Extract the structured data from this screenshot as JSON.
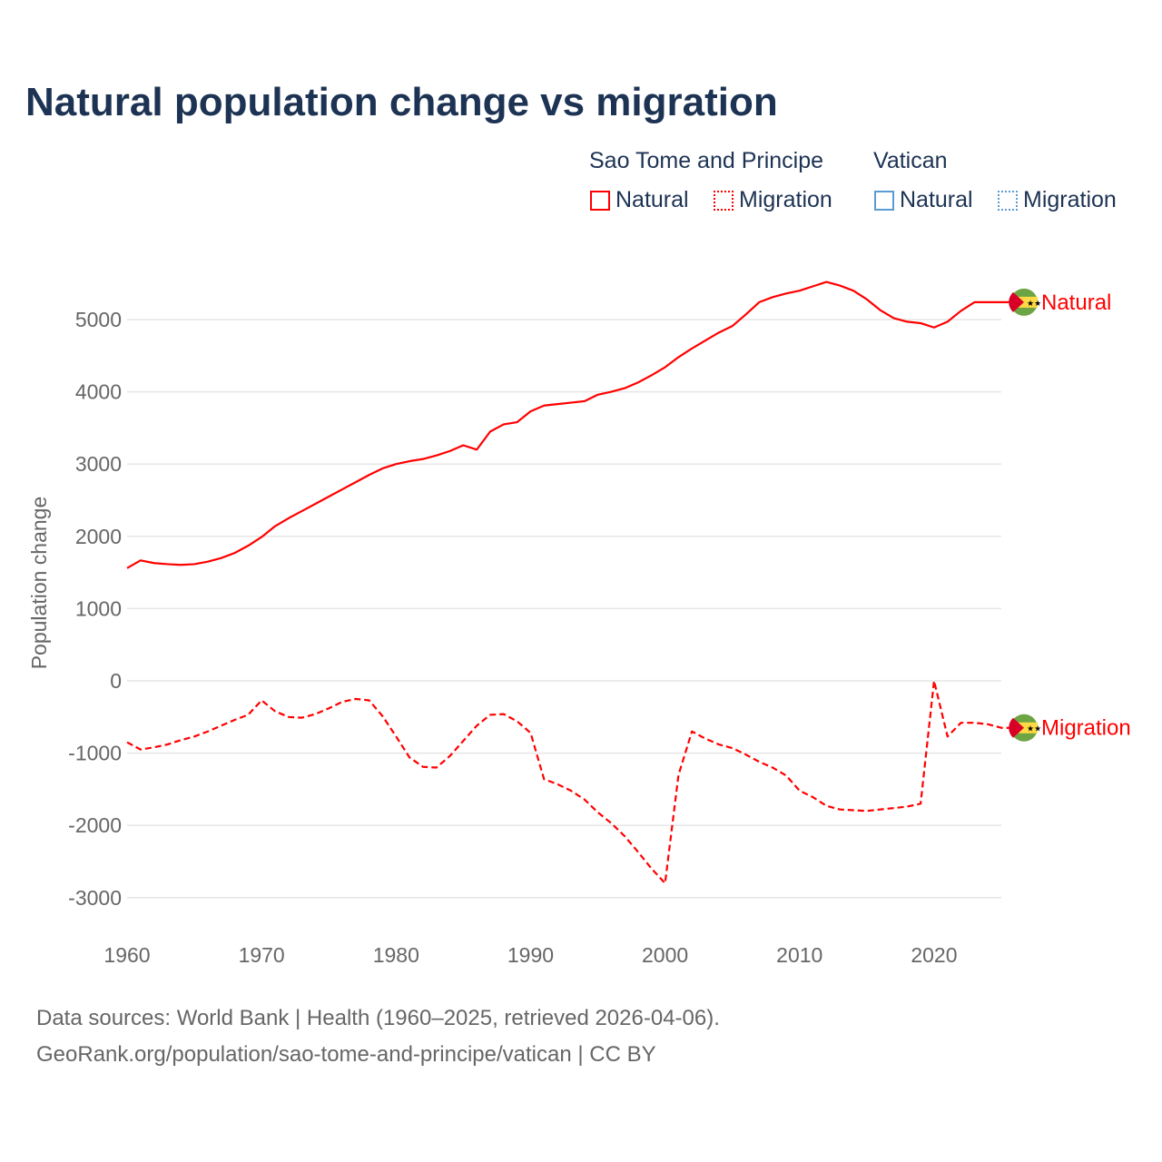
{
  "title": "Natural population change vs migration",
  "legend": {
    "groups": [
      {
        "name": "Sao Tome and Principe",
        "color": "#ff0000",
        "items": [
          "Natural",
          "Migration"
        ]
      },
      {
        "name": "Vatican",
        "color": "#5b9bd5",
        "items": [
          "Natural",
          "Migration"
        ]
      }
    ]
  },
  "sources": {
    "line1": "Data sources: World Bank | Health (1960–2025, retrieved 2026-04-06).",
    "line2": "GeoRank.org/population/sao-tome-and-principe/vatican | CC BY"
  },
  "chart_data": {
    "type": "line",
    "title": "Natural population change vs migration",
    "xlabel": "",
    "ylabel": "Population change",
    "xlim": [
      1960,
      2025
    ],
    "ylim": [
      -3000,
      5500
    ],
    "xticks": [
      1960,
      1970,
      1980,
      1990,
      2000,
      2010,
      2020
    ],
    "yticks": [
      -3000,
      -2000,
      -1000,
      0,
      1000,
      2000,
      3000,
      4000,
      5000
    ],
    "grid": true,
    "x_start": 1960,
    "series": [
      {
        "name": "Natural",
        "country": "Sao Tome and Principe",
        "style": "solid",
        "color": "#ff0000",
        "end_label": "Natural",
        "values": [
          1560,
          1667,
          1630,
          1615,
          1605,
          1615,
          1650,
          1700,
          1770,
          1870,
          1990,
          2140,
          2250,
          2350,
          2450,
          2550,
          2650,
          2750,
          2850,
          2940,
          3000,
          3040,
          3070,
          3120,
          3180,
          3260,
          3200,
          3450,
          3550,
          3580,
          3730,
          3810,
          3830,
          3850,
          3870,
          3960,
          4000,
          4050,
          4130,
          4230,
          4340,
          4480,
          4600,
          4710,
          4820,
          4910,
          5070,
          5240,
          5310,
          5360,
          5400,
          5460,
          5520,
          5470,
          5400,
          5280,
          5130,
          5020,
          4970,
          4950,
          4890,
          4970,
          5120,
          5240
        ]
      },
      {
        "name": "Migration",
        "country": "Sao Tome and Principe",
        "style": "dashed",
        "color": "#ff0000",
        "end_label": "Migration",
        "values": [
          -850,
          -950,
          -920,
          -880,
          -820,
          -770,
          -700,
          -620,
          -540,
          -470,
          -270,
          -420,
          -500,
          -510,
          -460,
          -380,
          -290,
          -250,
          -270,
          -490,
          -770,
          -1060,
          -1190,
          -1200,
          -1040,
          -830,
          -620,
          -470,
          -460,
          -560,
          -720,
          -1360,
          -1430,
          -1520,
          -1640,
          -1820,
          -1970,
          -2150,
          -2370,
          -2600,
          -2800,
          -1300,
          -700,
          -800,
          -880,
          -930,
          -1020,
          -1120,
          -1200,
          -1310,
          -1520,
          -1610,
          -1730,
          -1780,
          -1790,
          -1800,
          -1780,
          -1760,
          -1740,
          -1700,
          0,
          -770,
          -580,
          -580,
          -600,
          -650
        ]
      }
    ]
  }
}
